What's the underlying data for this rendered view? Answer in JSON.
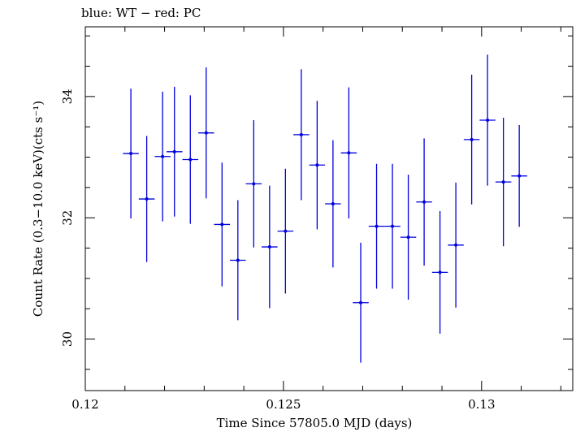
{
  "chart_data": {
    "type": "scatter",
    "title": "blue: WT − red: PC",
    "xlabel": "Time Since 57805.0 MJD (days)",
    "ylabel": "Count Rate (0.3−10.0 keV)(cts s⁻¹)",
    "xlim": [
      0.12,
      0.1323
    ],
    "ylim": [
      29.15,
      35.15
    ],
    "x_ticks": [
      0.12,
      0.125,
      0.13
    ],
    "x_tick_labels": [
      "0.12",
      "0.125",
      "0.13"
    ],
    "y_ticks": [
      30,
      32,
      34
    ],
    "y_tick_labels": [
      "30",
      "32",
      "34"
    ],
    "grid": false,
    "series": [
      {
        "color": "#0000dd",
        "points": [
          {
            "x": 0.12115,
            "y": 33.06,
            "xerr": 0.0002,
            "yerr": 1.07
          },
          {
            "x": 0.12155,
            "y": 32.31,
            "xerr": 0.0002,
            "yerr": 1.04
          },
          {
            "x": 0.12195,
            "y": 33.01,
            "xerr": 0.0002,
            "yerr": 1.07
          },
          {
            "x": 0.12225,
            "y": 33.09,
            "xerr": 0.0002,
            "yerr": 1.07
          },
          {
            "x": 0.12265,
            "y": 32.96,
            "xerr": 0.0002,
            "yerr": 1.06
          },
          {
            "x": 0.12305,
            "y": 33.4,
            "xerr": 0.0002,
            "yerr": 1.08
          },
          {
            "x": 0.12345,
            "y": 31.89,
            "xerr": 0.0002,
            "yerr": 1.02
          },
          {
            "x": 0.12385,
            "y": 31.3,
            "xerr": 0.0002,
            "yerr": 0.99
          },
          {
            "x": 0.12425,
            "y": 32.56,
            "xerr": 0.0002,
            "yerr": 1.05
          },
          {
            "x": 0.12465,
            "y": 31.52,
            "xerr": 0.0002,
            "yerr": 1.01
          },
          {
            "x": 0.12505,
            "y": 31.78,
            "xerr": 0.0002,
            "yerr": 1.03
          },
          {
            "x": 0.12545,
            "y": 33.37,
            "xerr": 0.0002,
            "yerr": 1.08
          },
          {
            "x": 0.12585,
            "y": 32.87,
            "xerr": 0.0002,
            "yerr": 1.06
          },
          {
            "x": 0.12625,
            "y": 32.23,
            "xerr": 0.0002,
            "yerr": 1.05
          },
          {
            "x": 0.12665,
            "y": 33.07,
            "xerr": 0.0002,
            "yerr": 1.08
          },
          {
            "x": 0.12695,
            "y": 30.6,
            "xerr": 0.0002,
            "yerr": 0.99
          },
          {
            "x": 0.12735,
            "y": 31.86,
            "xerr": 0.0002,
            "yerr": 1.03
          },
          {
            "x": 0.12775,
            "y": 31.86,
            "xerr": 0.0002,
            "yerr": 1.03
          },
          {
            "x": 0.12815,
            "y": 31.68,
            "xerr": 0.0002,
            "yerr": 1.03
          },
          {
            "x": 0.12855,
            "y": 32.26,
            "xerr": 0.0002,
            "yerr": 1.05
          },
          {
            "x": 0.12895,
            "y": 31.1,
            "xerr": 0.0002,
            "yerr": 1.01
          },
          {
            "x": 0.12935,
            "y": 31.55,
            "xerr": 0.0002,
            "yerr": 1.03
          },
          {
            "x": 0.12975,
            "y": 33.29,
            "xerr": 0.0002,
            "yerr": 1.07
          },
          {
            "x": 0.13015,
            "y": 33.61,
            "xerr": 0.0002,
            "yerr": 1.08
          },
          {
            "x": 0.13055,
            "y": 32.59,
            "xerr": 0.0002,
            "yerr": 1.06
          },
          {
            "x": 0.13095,
            "y": 32.69,
            "xerr": 0.0002,
            "yerr": 0.84
          }
        ]
      }
    ]
  }
}
